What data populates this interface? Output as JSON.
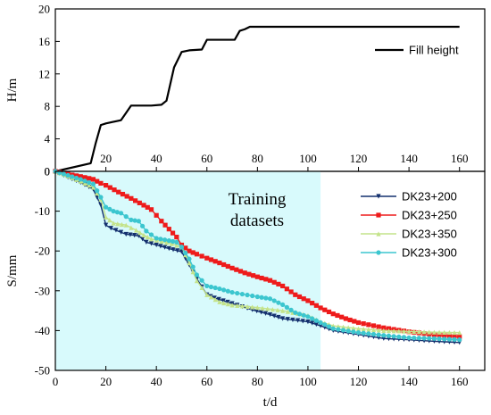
{
  "chart_data": [
    {
      "type": "line",
      "xlabel": "",
      "ylabel": "H/m",
      "xlim": [
        0,
        170
      ],
      "ylim": [
        0,
        20
      ],
      "xticks": [
        20,
        40,
        60,
        80,
        100,
        120,
        140,
        160
      ],
      "xtick_labels": [
        "20",
        "40",
        "60",
        "80",
        "100",
        "120",
        "140",
        "160"
      ],
      "yticks": [
        0,
        4,
        8,
        12,
        16,
        20
      ],
      "ytick_labels": [
        "0",
        "4",
        "8",
        "12",
        "16",
        "20"
      ],
      "legend_position": "top-right",
      "series": [
        {
          "name": "Fill height",
          "color": "#000000",
          "x": [
            0,
            14,
            16,
            18,
            20,
            26,
            30,
            38,
            42,
            44,
            47,
            50,
            53,
            58,
            60,
            64,
            71,
            73,
            75,
            77,
            100,
            130,
            160
          ],
          "y": [
            0,
            1.0,
            3.5,
            5.7,
            5.9,
            6.3,
            8.1,
            8.1,
            8.2,
            8.7,
            12.8,
            14.7,
            14.9,
            15.0,
            16.2,
            16.2,
            16.2,
            17.3,
            17.5,
            17.8,
            17.8,
            17.8,
            17.8
          ]
        }
      ]
    },
    {
      "type": "line",
      "xlabel": "t/d",
      "ylabel": "S/mm",
      "xlim": [
        0,
        170
      ],
      "ylim": [
        -50,
        0
      ],
      "xticks": [
        0,
        20,
        40,
        60,
        80,
        100,
        120,
        140,
        160
      ],
      "xtick_labels": [
        "0",
        "20",
        "40",
        "60",
        "80",
        "100",
        "120",
        "140",
        "160"
      ],
      "yticks": [
        0,
        -10,
        -20,
        -30,
        -40,
        -50
      ],
      "ytick_labels": [
        "0",
        "-10",
        "-20",
        "-30",
        "-40",
        "-50"
      ],
      "legend_position": "top-right",
      "annotation": [
        "Training",
        "datasets"
      ],
      "shaded_region": {
        "x": [
          0,
          105
        ],
        "color": "#d8fafc"
      },
      "series": [
        {
          "name": "DK23+200",
          "color": "#14306e",
          "marker": "triangle-down",
          "x": [
            0,
            5,
            10,
            15,
            18,
            20,
            22,
            28,
            33,
            36,
            40,
            45,
            50,
            53,
            56,
            60,
            63,
            70,
            78,
            85,
            90,
            100,
            105,
            110,
            120,
            130,
            140,
            150,
            160
          ],
          "y": [
            0,
            -1.5,
            -2.8,
            -4.5,
            -8.5,
            -13.5,
            -14.3,
            -15.8,
            -16.2,
            -17.8,
            -18.5,
            -19.4,
            -20.2,
            -23.5,
            -27.0,
            -31.0,
            -31.8,
            -33.2,
            -34.8,
            -36.0,
            -37.0,
            -37.8,
            -38.8,
            -40.0,
            -41.0,
            -42.0,
            -42.3,
            -42.7,
            -43.0
          ]
        },
        {
          "name": "DK23+250",
          "color": "#ee1b1b",
          "marker": "square",
          "x": [
            0,
            5,
            10,
            15,
            18,
            20,
            25,
            30,
            35,
            38,
            42,
            45,
            48,
            50,
            53,
            56,
            60,
            65,
            70,
            75,
            80,
            85,
            90,
            95,
            100,
            105,
            110,
            115,
            120,
            130,
            140,
            150,
            160
          ],
          "y": [
            0,
            -0.7,
            -1.3,
            -2.0,
            -3.0,
            -3.5,
            -5.2,
            -6.8,
            -8.5,
            -9.6,
            -12.5,
            -14.5,
            -16.5,
            -18.5,
            -20.0,
            -20.8,
            -21.8,
            -23.0,
            -24.3,
            -25.5,
            -26.5,
            -27.4,
            -28.8,
            -31.0,
            -32.5,
            -34.3,
            -35.8,
            -37.0,
            -38.0,
            -39.3,
            -40.3,
            -41.0,
            -41.5
          ]
        },
        {
          "name": "DK23+350",
          "color": "#c4e38a",
          "marker": "triangle-up",
          "x": [
            0,
            5,
            10,
            15,
            18,
            20,
            23,
            28,
            32,
            35,
            38,
            42,
            46,
            50,
            53,
            56,
            60,
            65,
            70,
            80,
            90,
            100,
            105,
            110,
            120,
            130,
            140,
            150,
            160
          ],
          "y": [
            0,
            -1.2,
            -2.5,
            -4.0,
            -7.0,
            -11.5,
            -13.0,
            -13.5,
            -14.8,
            -16.0,
            -17.0,
            -17.6,
            -18.2,
            -19.0,
            -23.0,
            -27.5,
            -31.0,
            -32.8,
            -33.6,
            -34.2,
            -35.0,
            -36.2,
            -37.8,
            -38.8,
            -39.5,
            -40.0,
            -40.2,
            -40.4,
            -40.5
          ]
        },
        {
          "name": "DK23+300",
          "color": "#3cc6cf",
          "marker": "circle",
          "x": [
            0,
            5,
            10,
            15,
            18,
            20,
            23,
            26,
            30,
            33,
            36,
            40,
            45,
            48,
            50,
            53,
            56,
            60,
            65,
            70,
            80,
            85,
            90,
            95,
            100,
            105,
            110,
            120,
            130,
            140,
            150,
            160
          ],
          "y": [
            0,
            -1.0,
            -2.0,
            -3.2,
            -6.5,
            -9.0,
            -10.0,
            -10.5,
            -12.2,
            -12.5,
            -15.0,
            -16.8,
            -17.4,
            -17.8,
            -19.0,
            -22.0,
            -26.0,
            -28.8,
            -29.5,
            -30.4,
            -31.5,
            -32.0,
            -33.5,
            -35.5,
            -36.5,
            -38.0,
            -39.5,
            -40.5,
            -41.2,
            -41.8,
            -42.0,
            -42.3
          ]
        }
      ]
    }
  ]
}
